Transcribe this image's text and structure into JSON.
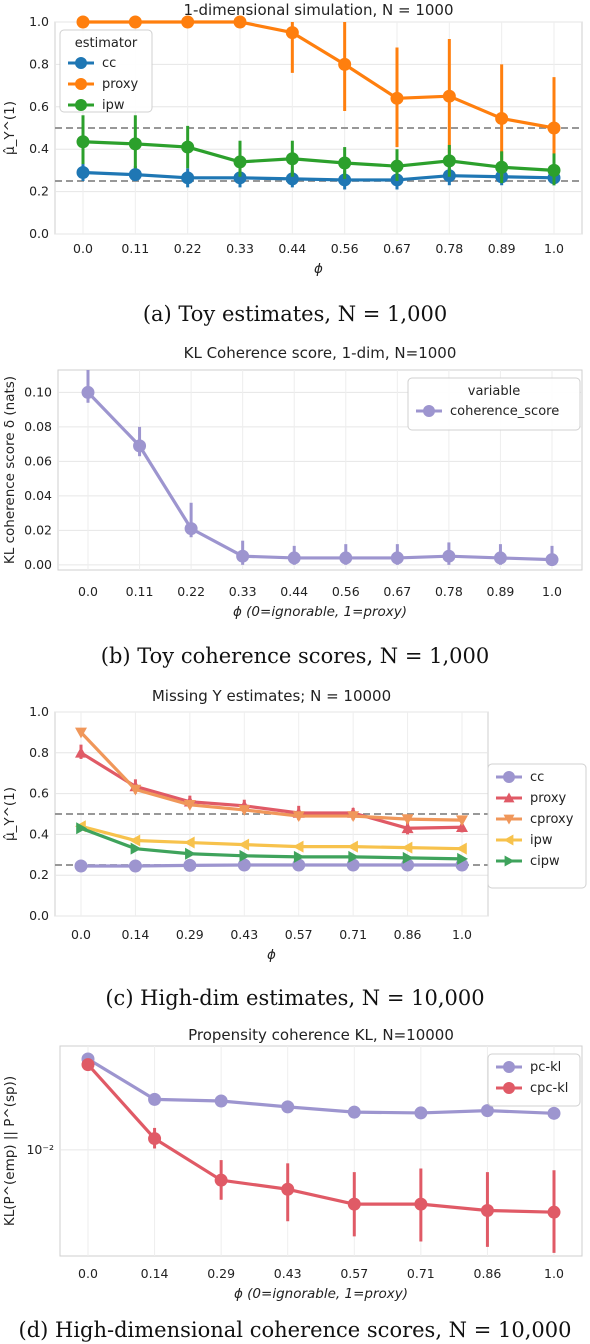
{
  "chart_data": [
    {
      "type": "line",
      "title": "1-dimensional simulation, N = 1000",
      "xlabel": "ϕ",
      "ylabel": "μ̂_Y^(1)",
      "categories": [
        "0.0",
        "0.11",
        "0.22",
        "0.33",
        "0.44",
        "0.56",
        "0.67",
        "0.78",
        "0.89",
        "1.0"
      ],
      "ylim": [
        0,
        1
      ],
      "yticks": [
        "0.0",
        "0.2",
        "0.4",
        "0.6",
        "0.8",
        "1.0"
      ],
      "reference_lines": [
        0.5,
        0.25
      ],
      "legend": {
        "title": "estimator",
        "placement": "top-left"
      },
      "series": [
        {
          "name": "cc",
          "color": "#1f77b4",
          "marker": "circle",
          "values": [
            0.29,
            0.28,
            0.265,
            0.265,
            0.26,
            0.255,
            0.255,
            0.275,
            0.27,
            0.265
          ],
          "err_low": [
            0.25,
            0.25,
            0.22,
            0.22,
            0.22,
            0.21,
            0.21,
            0.23,
            0.23,
            0.23
          ],
          "err_high": [
            0.33,
            0.32,
            0.31,
            0.31,
            0.3,
            0.3,
            0.3,
            0.32,
            0.31,
            0.3
          ]
        },
        {
          "name": "proxy",
          "color": "#ff7f0e",
          "marker": "circle",
          "values": [
            1.0,
            1.0,
            1.0,
            1.0,
            0.95,
            0.8,
            0.64,
            0.65,
            0.545,
            0.5
          ],
          "err_low": [
            1.0,
            1.0,
            1.0,
            1.0,
            0.76,
            0.58,
            0.41,
            0.38,
            0.27,
            0.24
          ],
          "err_high": [
            1.0,
            1.0,
            1.0,
            1.0,
            1.0,
            1.0,
            0.88,
            0.92,
            0.8,
            0.74
          ]
        },
        {
          "name": "ipw",
          "color": "#2ca02c",
          "marker": "circle",
          "values": [
            0.435,
            0.425,
            0.41,
            0.34,
            0.355,
            0.335,
            0.32,
            0.345,
            0.315,
            0.3
          ],
          "err_low": [
            0.33,
            0.31,
            0.31,
            0.27,
            0.27,
            0.26,
            0.25,
            0.27,
            0.24,
            0.23
          ],
          "err_high": [
            0.56,
            0.56,
            0.51,
            0.44,
            0.44,
            0.41,
            0.4,
            0.42,
            0.39,
            0.38
          ]
        }
      ]
    },
    {
      "type": "line",
      "title": "KL Coherence score, 1-dim, N=1000",
      "xlabel": "ϕ (0=ignorable, 1=proxy)",
      "ylabel": "KL coherence score δ (nats)",
      "categories": [
        "0.0",
        "0.11",
        "0.22",
        "0.33",
        "0.44",
        "0.56",
        "0.67",
        "0.78",
        "0.89",
        "1.0"
      ],
      "ylim": [
        -0.003,
        0.113
      ],
      "yticks": [
        "0.00",
        "0.02",
        "0.04",
        "0.06",
        "0.08",
        "0.10"
      ],
      "legend": {
        "title": "variable",
        "placement": "top-right"
      },
      "series": [
        {
          "name": "coherence_score",
          "color": "#9d95cf",
          "marker": "circle",
          "values": [
            0.1,
            0.069,
            0.021,
            0.005,
            0.004,
            0.004,
            0.004,
            0.005,
            0.004,
            0.003
          ],
          "err_low": [
            0.094,
            0.063,
            0.016,
            0.0,
            0.0,
            0.0,
            0.0,
            0.0,
            0.0,
            0.0
          ],
          "err_high": [
            0.113,
            0.08,
            0.036,
            0.014,
            0.011,
            0.012,
            0.012,
            0.013,
            0.012,
            0.011
          ]
        }
      ]
    },
    {
      "type": "line",
      "title": "Missing Y estimates; N = 10000",
      "xlabel": "ϕ",
      "ylabel": "μ̂_Y^(1)",
      "categories": [
        "0.0",
        "0.14",
        "0.29",
        "0.43",
        "0.57",
        "0.71",
        "0.86",
        "1.0"
      ],
      "ylim": [
        0,
        1
      ],
      "yticks": [
        "0.0",
        "0.2",
        "0.4",
        "0.6",
        "0.8",
        "1.0"
      ],
      "reference_lines": [
        0.5,
        0.25
      ],
      "legend": {
        "placement": "right"
      },
      "series": [
        {
          "name": "cc",
          "color": "#9d95cf",
          "marker": "circle",
          "values": [
            0.245,
            0.245,
            0.248,
            0.25,
            0.25,
            0.25,
            0.25,
            0.25
          ]
        },
        {
          "name": "proxy",
          "color": "#e05a66",
          "marker": "triangle-up",
          "values": [
            0.8,
            0.635,
            0.56,
            0.54,
            0.505,
            0.505,
            0.43,
            0.435
          ],
          "err_low": [
            0.77,
            0.6,
            0.53,
            0.51,
            0.47,
            0.47,
            0.4,
            0.41
          ],
          "err_high": [
            0.84,
            0.67,
            0.59,
            0.57,
            0.54,
            0.53,
            0.48,
            0.47
          ]
        },
        {
          "name": "cproxy",
          "color": "#f0975a",
          "marker": "triangle-down",
          "values": [
            0.9,
            0.62,
            0.545,
            0.52,
            0.49,
            0.49,
            0.475,
            0.47
          ]
        },
        {
          "name": "ipw",
          "color": "#f7c24c",
          "marker": "triangle-left",
          "values": [
            0.44,
            0.37,
            0.36,
            0.35,
            0.34,
            0.34,
            0.335,
            0.33
          ]
        },
        {
          "name": "cipw",
          "color": "#3fa35c",
          "marker": "triangle-right",
          "values": [
            0.43,
            0.33,
            0.305,
            0.295,
            0.29,
            0.29,
            0.285,
            0.28
          ]
        }
      ]
    },
    {
      "type": "line",
      "title": "Propensity coherence KL, N=10000",
      "xlabel": "ϕ (0=ignorable, 1=proxy)",
      "ylabel": "KL(P^(emp) || P^(sp))",
      "yscale": "log",
      "categories": [
        "0.0",
        "0.14",
        "0.29",
        "0.43",
        "0.57",
        "0.71",
        "0.86",
        "1.0"
      ],
      "ylim": [
        0.0021,
        0.046
      ],
      "yticks": [
        "10⁻²"
      ],
      "legend": {
        "placement": "top-right"
      },
      "series": [
        {
          "name": "pc-kl",
          "color": "#9d95cf",
          "marker": "circle",
          "values": [
            0.038,
            0.021,
            0.0205,
            0.0188,
            0.0174,
            0.0172,
            0.0178,
            0.0171
          ]
        },
        {
          "name": "cpc-kl",
          "color": "#e05a66",
          "marker": "circle",
          "values": [
            0.035,
            0.0118,
            0.0064,
            0.0056,
            0.0045,
            0.0045,
            0.0041,
            0.004
          ],
          "err_low": [
            0.032,
            0.0102,
            0.0048,
            0.0035,
            0.0028,
            0.0026,
            0.0024,
            0.0022
          ],
          "err_high": [
            0.038,
            0.0138,
            0.0086,
            0.0082,
            0.0072,
            0.0076,
            0.0072,
            0.0074
          ]
        }
      ]
    }
  ],
  "captions": [
    "(a) Toy estimates, N = 1,000",
    "(b) Toy coherence scores, N = 1,000",
    "(c) High-dim estimates, N = 10,000",
    "(d) High-dimensional coherence scores, N = 10,000"
  ]
}
